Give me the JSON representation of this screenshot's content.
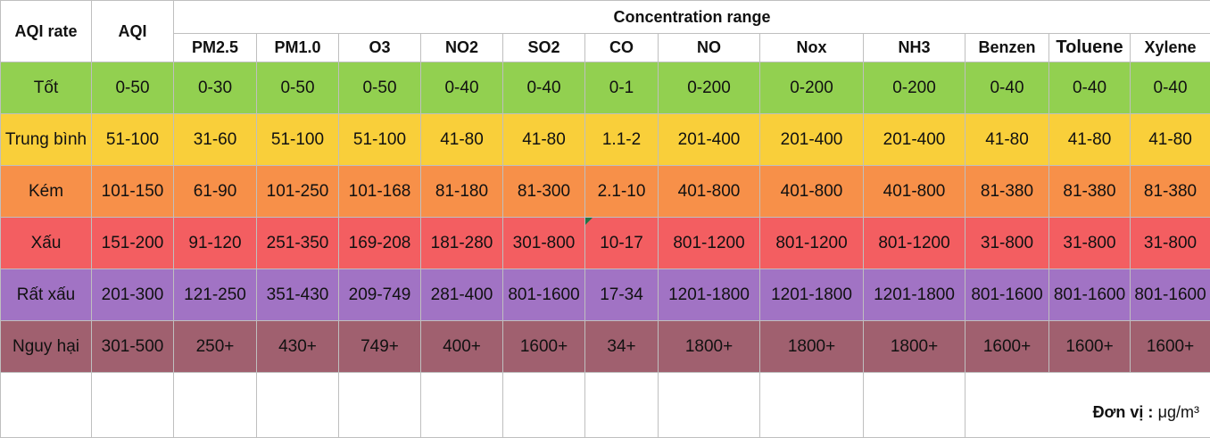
{
  "header": {
    "aqi_rate": "AQI rate",
    "aqi": "AQI",
    "concentration_range": "Concentration range",
    "pollutants": [
      "PM2.5",
      "PM1.0",
      "O3",
      "NO2",
      "SO2",
      "CO",
      "NO",
      "Nox",
      "NH3",
      "Benzen",
      "Toluene",
      "Xylene"
    ]
  },
  "rows": [
    {
      "rate": "Tốt",
      "aqi": "0-50",
      "bg": "#92d050",
      "values": [
        "0-30",
        "0-50",
        "0-50",
        "0-40",
        "0-40",
        "0-1",
        "0-200",
        "0-200",
        "0-200",
        "0-40",
        "0-40",
        "0-40"
      ]
    },
    {
      "rate": "Trung bình",
      "aqi": "51-100",
      "bg": "#f9cf3a",
      "values": [
        "31-60",
        "51-100",
        "51-100",
        "41-80",
        "41-80",
        "1.1-2",
        "201-400",
        "201-400",
        "201-400",
        "41-80",
        "41-80",
        "41-80"
      ]
    },
    {
      "rate": "Kém",
      "aqi": "101-150",
      "bg": "#f79049",
      "values": [
        "61-90",
        "101-250",
        "101-168",
        "81-180",
        "81-300",
        "2.1-10",
        "401-800",
        "401-800",
        "401-800",
        "81-380",
        "81-380",
        "81-380"
      ]
    },
    {
      "rate": "Xấu",
      "aqi": "151-200",
      "bg": "#f35e61",
      "values": [
        "91-120",
        "251-350",
        "169-208",
        "181-280",
        "301-800",
        "10-17",
        "801-1200",
        "801-1200",
        "801-1200",
        "31-800",
        "31-800",
        "31-800"
      ]
    },
    {
      "rate": "Rất xấu",
      "aqi": "201-300",
      "bg": "#a173c4",
      "values": [
        "121-250",
        "351-430",
        "209-749",
        "281-400",
        "801-1600",
        "17-34",
        "1201-1800",
        "1201-1800",
        "1201-1800",
        "801-1600",
        "801-1600",
        "801-1600"
      ]
    },
    {
      "rate": "Nguy hại",
      "aqi": "301-500",
      "bg": "#a0606f",
      "values": [
        "250+",
        "430+",
        "749+",
        "400+",
        "1600+",
        "34+",
        "1800+",
        "1800+",
        "1800+",
        "1600+",
        "1600+",
        "1600+"
      ]
    }
  ],
  "unit": {
    "label": "Đơn vị :",
    "value": "μg/m³"
  }
}
